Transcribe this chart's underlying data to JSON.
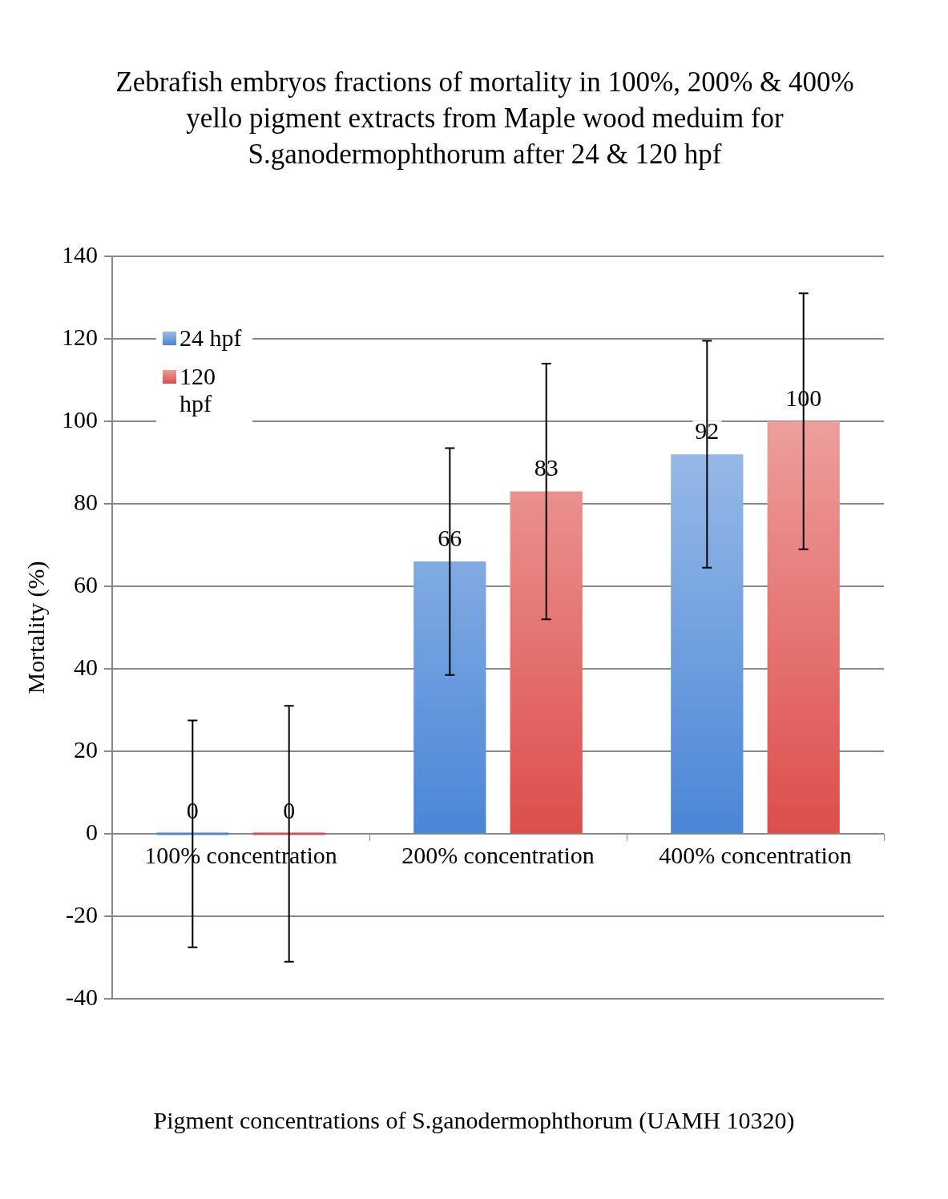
{
  "chart_data": {
    "type": "bar",
    "title": "Zebrafish embryos fractions of mortality  in 100%, 200% & 400% yello pigment extracts from Maple wood meduim for S.ganodermophthorum  after 24 & 120 hpf",
    "xlabel": "Pigment concentrations of S.ganodermophthorum (UAMH 10320)",
    "ylabel": "Mortality (%)",
    "categories": [
      "100% concentration",
      "200% concentration",
      "400% concentration"
    ],
    "series": [
      {
        "name": "24 hpf",
        "color": "#4a86d6",
        "values": [
          0,
          66,
          92
        ],
        "errors": [
          27.5,
          27.5,
          27.5
        ]
      },
      {
        "name": "120 hpf",
        "color": "#dc4e4b",
        "values": [
          0,
          83,
          100
        ],
        "errors": [
          31,
          31,
          31
        ]
      }
    ],
    "ylim": [
      -40,
      140
    ],
    "yticks": [
      -40,
      -20,
      0,
      20,
      40,
      60,
      80,
      100,
      120,
      140
    ],
    "grid": "y",
    "legend": "top left",
    "data_labels": true
  }
}
